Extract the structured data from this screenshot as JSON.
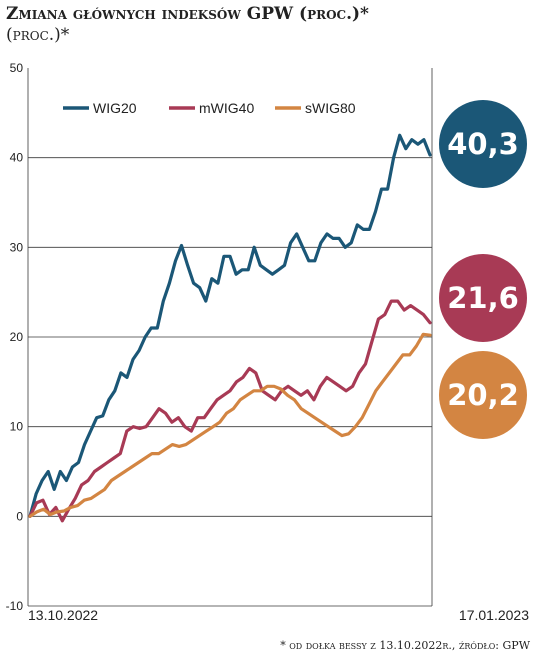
{
  "header": {
    "title": "Zmiana głównych indeksów GPW (proc.)*",
    "subtitle": "(proc.)*"
  },
  "footnote": "* od dołka bessy z 13.10.2022r., źródło: GPW",
  "chart_data": {
    "type": "line",
    "title": "Zmiana głównych indeksów GPW (proc.)*",
    "ylim": [
      -10,
      50
    ],
    "yticks": [
      "50",
      "40",
      "30",
      "20",
      "10",
      "0",
      "-10"
    ],
    "yticks_values": [
      50,
      40,
      30,
      20,
      10,
      0,
      -10
    ],
    "x_start_label": "13.10.2022",
    "x_end_label": "17.01.2023",
    "grid": true,
    "legend_position": "top-left",
    "series": [
      {
        "name": "WIG20",
        "color": "#1b5777",
        "final_label": "40,3",
        "values": [
          0,
          2.5,
          4,
          5,
          3,
          5,
          4,
          5.5,
          6,
          8,
          9.5,
          11,
          11.2,
          13,
          14,
          16,
          15.5,
          17.5,
          18.5,
          20,
          21,
          21,
          24,
          26,
          28.5,
          30.2,
          28,
          26,
          25.5,
          24,
          26.5,
          26,
          29,
          29,
          27,
          27.5,
          27.5,
          30,
          28,
          27.5,
          27,
          27.5,
          28,
          30.5,
          31.5,
          30,
          28.5,
          28.5,
          30.5,
          31.5,
          31,
          31,
          30,
          30.5,
          32.5,
          32,
          32,
          34,
          36.5,
          36.5,
          40,
          42.5,
          41,
          42,
          41.5,
          42,
          40.3
        ]
      },
      {
        "name": "mWIG40",
        "color": "#a83a55",
        "final_label": "21,6",
        "values": [
          0,
          1.5,
          1.8,
          0.2,
          1,
          -0.5,
          0.8,
          2,
          3.5,
          4,
          5,
          5.5,
          6,
          6.5,
          7,
          9.5,
          10,
          9.8,
          10,
          11,
          12,
          11.5,
          10.5,
          11,
          10,
          9.5,
          11,
          11,
          12,
          13,
          13.5,
          14,
          15,
          15.5,
          16.5,
          16,
          14,
          13.5,
          13,
          14,
          14.5,
          14,
          13.5,
          14,
          13,
          14.5,
          15.5,
          15,
          14.5,
          14,
          14.5,
          16,
          17,
          19.5,
          22,
          22.5,
          24,
          24,
          23,
          23.5,
          23,
          22.5,
          21.6
        ]
      },
      {
        "name": "sWIG80",
        "color": "#d38542",
        "final_label": "20,2",
        "values": [
          0,
          0.5,
          0.8,
          0.2,
          0.5,
          0.6,
          1,
          1.2,
          1.8,
          2,
          2.5,
          3,
          4,
          4.5,
          5,
          5.5,
          6,
          6.5,
          7,
          7,
          7.5,
          8,
          7.8,
          8,
          8.5,
          9,
          9.5,
          10,
          10.5,
          11.5,
          12,
          13,
          13.5,
          14,
          14,
          14.5,
          14.5,
          14.2,
          13.5,
          13,
          12,
          11.5,
          11,
          10.5,
          10,
          9.5,
          9,
          9.2,
          10,
          11,
          12.5,
          14,
          15,
          16,
          17,
          18,
          18,
          19,
          20.3,
          20.2
        ]
      }
    ]
  }
}
